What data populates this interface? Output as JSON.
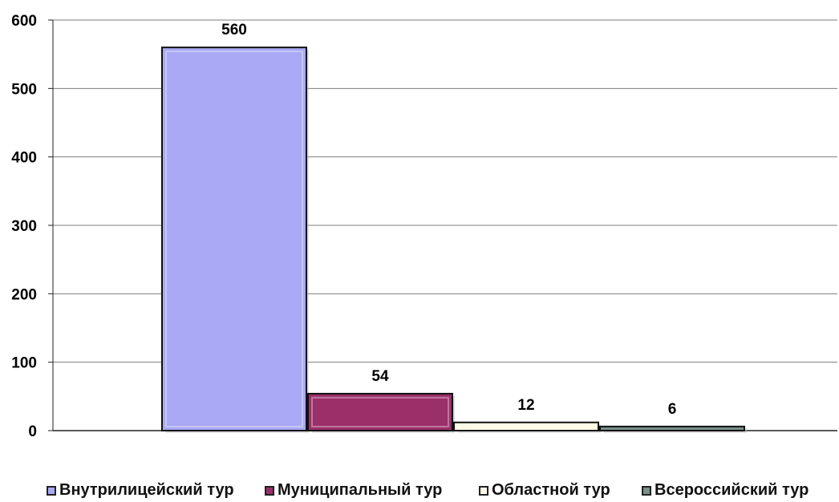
{
  "chart_data": {
    "type": "bar",
    "categories": [
      "Внутрилицейский тур",
      "Муниципальный тур",
      "Областной тур",
      "Всероссийский тур"
    ],
    "values": [
      560,
      54,
      12,
      6
    ],
    "data_labels": [
      "560",
      "54",
      "12",
      "6"
    ],
    "colors": [
      "#a9a9f5",
      "#9b2f6a",
      "#fffbe6",
      "#7a8f8a"
    ],
    "yticks": [
      "0",
      "100",
      "200",
      "300",
      "400",
      "500",
      "600"
    ],
    "ylim": [
      0,
      600
    ],
    "grid": true,
    "legend_position": "bottom"
  }
}
